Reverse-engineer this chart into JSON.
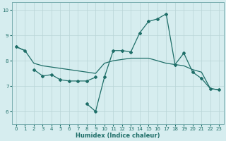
{
  "xlabel": "Humidex (Indice chaleur)",
  "xlim": [
    -0.5,
    23.5
  ],
  "ylim": [
    5.5,
    10.3
  ],
  "yticks": [
    6,
    7,
    8,
    9,
    10
  ],
  "xticks": [
    0,
    1,
    2,
    3,
    4,
    5,
    6,
    7,
    8,
    9,
    10,
    11,
    12,
    13,
    14,
    15,
    16,
    17,
    18,
    19,
    20,
    21,
    22,
    23
  ],
  "bg_color": "#d6edef",
  "grid_color": "#b8d4d6",
  "line_color": "#1e6e68",
  "line1_x": [
    0,
    1
  ],
  "line1_y": [
    8.55,
    8.4
  ],
  "line2_x": [
    2,
    3,
    4,
    5,
    6,
    7,
    8,
    9
  ],
  "line2_y": [
    7.65,
    7.4,
    7.45,
    7.25,
    7.2,
    7.2,
    7.2,
    7.35
  ],
  "line3_x": [
    8,
    9,
    10,
    11,
    12,
    13,
    14,
    15,
    16,
    17,
    18,
    19,
    20,
    21,
    22,
    23
  ],
  "line3_y": [
    6.3,
    6.0,
    7.35,
    8.4,
    8.4,
    8.35,
    9.1,
    9.55,
    9.65,
    9.85,
    7.85,
    8.3,
    7.55,
    7.3,
    6.9,
    6.85
  ],
  "line4_x": [
    0,
    1,
    2,
    3,
    4,
    5,
    6,
    7,
    8,
    9,
    10,
    11,
    12,
    13,
    14,
    15,
    16,
    17,
    18,
    19,
    20,
    21,
    22,
    23
  ],
  "line4_y": [
    8.55,
    8.4,
    7.9,
    7.8,
    7.75,
    7.7,
    7.65,
    7.6,
    7.55,
    7.5,
    7.9,
    8.0,
    8.05,
    8.1,
    8.1,
    8.1,
    8.0,
    7.9,
    7.85,
    7.8,
    7.65,
    7.55,
    6.9,
    6.85
  ],
  "marker": "D",
  "markersize": 2.0,
  "linewidth": 0.9
}
